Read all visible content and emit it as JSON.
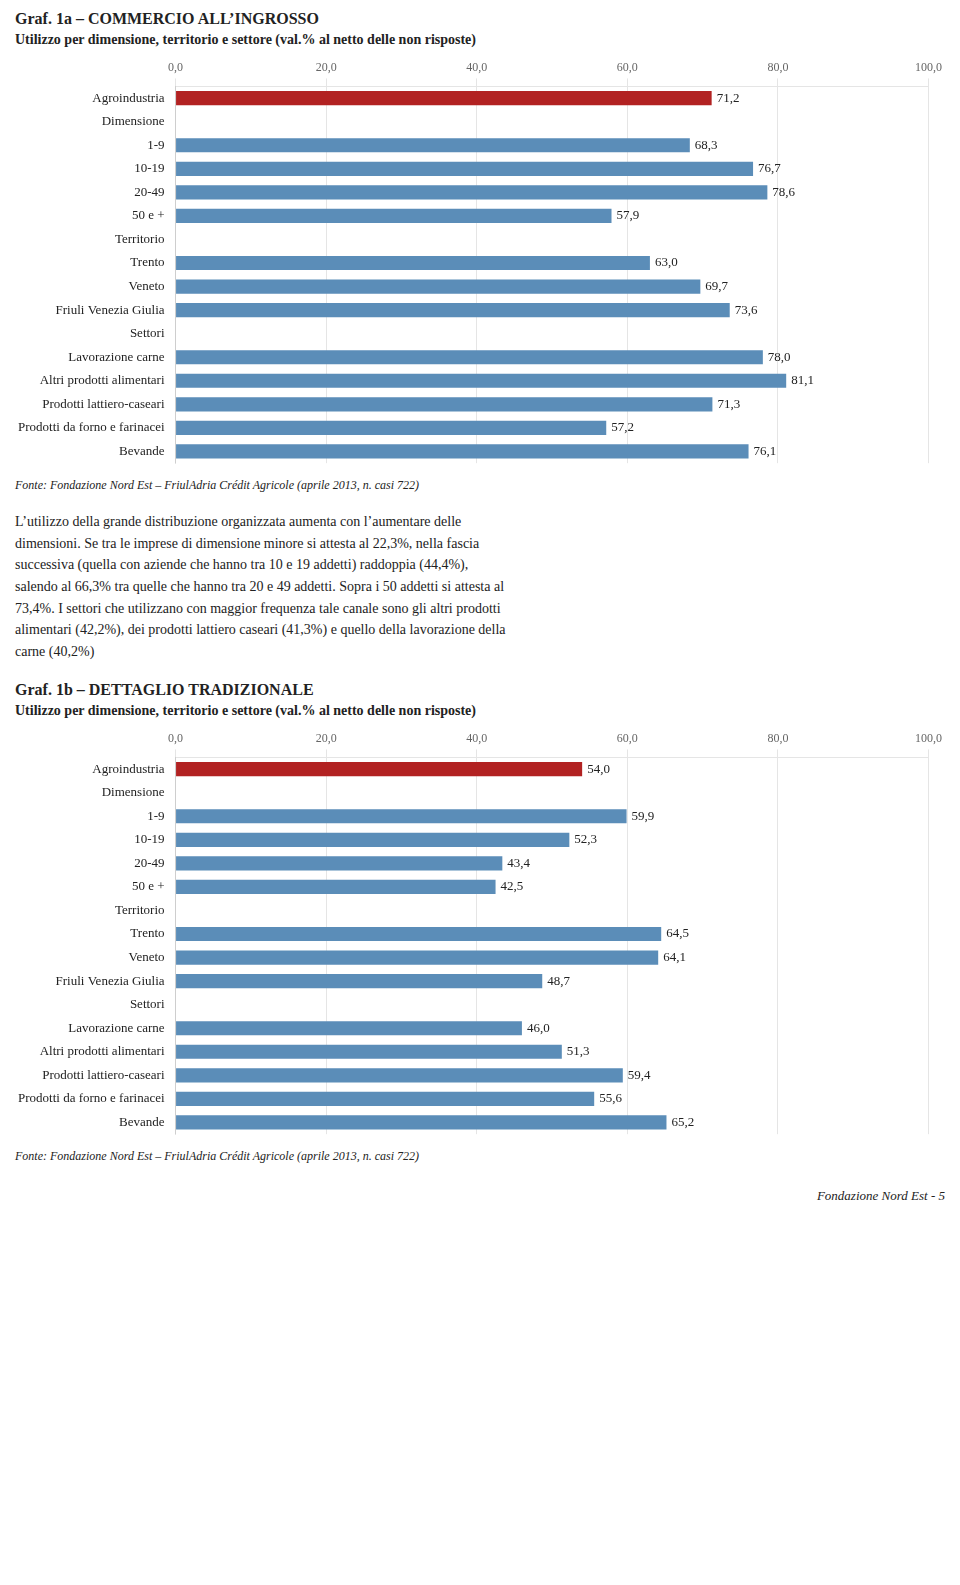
{
  "chart_data": [
    {
      "type": "bar",
      "orientation": "horizontal",
      "title": "Graf. 1a – COMMERCIO ALL’INGROSSO",
      "subtitle": "Utilizzo per dimensione, territorio e settore (val.% al netto delle non risposte)",
      "categories": [
        "Agroindustria",
        "Dimensione",
        "1-9",
        "10-19",
        "20-49",
        "50 e +",
        "Territorio",
        "Trento",
        "Veneto",
        "Friuli Venezia Giulia",
        "Settori",
        "Lavorazione carne",
        "Altri prodotti alimentari",
        "Prodotti lattiero-caseari",
        "Prodotti da forno e farinacei",
        "Bevande"
      ],
      "values": [
        71.2,
        null,
        68.3,
        76.7,
        78.6,
        57.9,
        null,
        63.0,
        69.7,
        73.6,
        null,
        78.0,
        81.1,
        71.3,
        57.2,
        76.1
      ],
      "value_labels": [
        "71,2",
        null,
        "68,3",
        "76,7",
        "78,6",
        "57,9",
        null,
        "63,0",
        "69,7",
        "73,6",
        null,
        "78,0",
        "81,1",
        "71,3",
        "57,2",
        "76,1"
      ],
      "colors": [
        "#b22222",
        null,
        "#5b8db8",
        "#5b8db8",
        "#5b8db8",
        "#5b8db8",
        null,
        "#5b8db8",
        "#5b8db8",
        "#5b8db8",
        null,
        "#5b8db8",
        "#5b8db8",
        "#5b8db8",
        "#5b8db8",
        "#5b8db8"
      ],
      "xlim": [
        0,
        100
      ],
      "xticks": [
        {
          "value": 0,
          "label": "0,0"
        },
        {
          "value": 20,
          "label": "20,0"
        },
        {
          "value": 40,
          "label": "40,0"
        },
        {
          "value": 60,
          "label": "60,0"
        },
        {
          "value": 80,
          "label": "80,0"
        },
        {
          "value": 100,
          "label": "100,0"
        }
      ],
      "grid": true,
      "data_labels": true,
      "annotations": [
        "Fonte: Fondazione Nord Est – FriulAdria Crédit Agricole (aprile 2013, n. casi 722)",
        "L’utilizzo della grande distribuzione organizzata aumenta con l’aumentare delle",
        "dimensioni. Se tra le imprese di dimensione minore si attesta al 22,3%, nella fascia",
        "successiva (quella con aziende che hanno tra 10 e 19 addetti) raddoppia (44,4%),",
        "salendo al 66,3% tra quelle che hanno tra 20 e 49 addetti. Sopra i 50 addetti si attesta al",
        "73,4%. I settori che utilizzano con maggior frequenza tale canale sono gli altri prodotti",
        "alimentari (42,2%), dei prodotti lattiero caseari (41,3%) e quello della lavorazione della",
        "carne (40,2%)"
      ]
    },
    {
      "type": "bar",
      "orientation": "horizontal",
      "title": "Graf. 1b – DETTAGLIO TRADIZIONALE",
      "subtitle": "Utilizzo per dimensione, territorio e settore (val.% al netto delle non risposte)",
      "categories": [
        "Agroindustria",
        "Dimensione",
        "1-9",
        "10-19",
        "20-49",
        "50 e +",
        "Territorio",
        "Trento",
        "Veneto",
        "Friuli Venezia Giulia",
        "Settori",
        "Lavorazione carne",
        "Altri prodotti alimentari",
        "Prodotti lattiero-caseari",
        "Prodotti da forno e farinacei",
        "Bevande"
      ],
      "values": [
        54.0,
        null,
        59.9,
        52.3,
        43.4,
        42.5,
        null,
        64.5,
        64.1,
        48.7,
        null,
        46.0,
        51.3,
        59.4,
        55.6,
        65.2
      ],
      "value_labels": [
        "54,0",
        null,
        "59,9",
        "52,3",
        "43,4",
        "42,5",
        null,
        "64,5",
        "64,1",
        "48,7",
        null,
        "46,0",
        "51,3",
        "59,4",
        "55,6",
        "65,2"
      ],
      "colors": [
        "#b22222",
        null,
        "#5b8db8",
        "#5b8db8",
        "#5b8db8",
        "#5b8db8",
        null,
        "#5b8db8",
        "#5b8db8",
        "#5b8db8",
        null,
        "#5b8db8",
        "#5b8db8",
        "#5b8db8",
        "#5b8db8",
        "#5b8db8"
      ],
      "xlim": [
        0,
        100
      ],
      "xticks": [
        {
          "value": 0,
          "label": "0,0"
        },
        {
          "value": 20,
          "label": "20,0"
        },
        {
          "value": 40,
          "label": "40,0"
        },
        {
          "value": 60,
          "label": "60,0"
        },
        {
          "value": 80,
          "label": "80,0"
        },
        {
          "value": 100,
          "label": "100,0"
        }
      ],
      "grid": true,
      "data_labels": true,
      "annotations": [
        "Fonte: Fondazione Nord Est – FriulAdria Crédit Agricole (aprile 2013, n. casi 722)",
        "Fondazione Nord Est - 5"
      ]
    }
  ]
}
